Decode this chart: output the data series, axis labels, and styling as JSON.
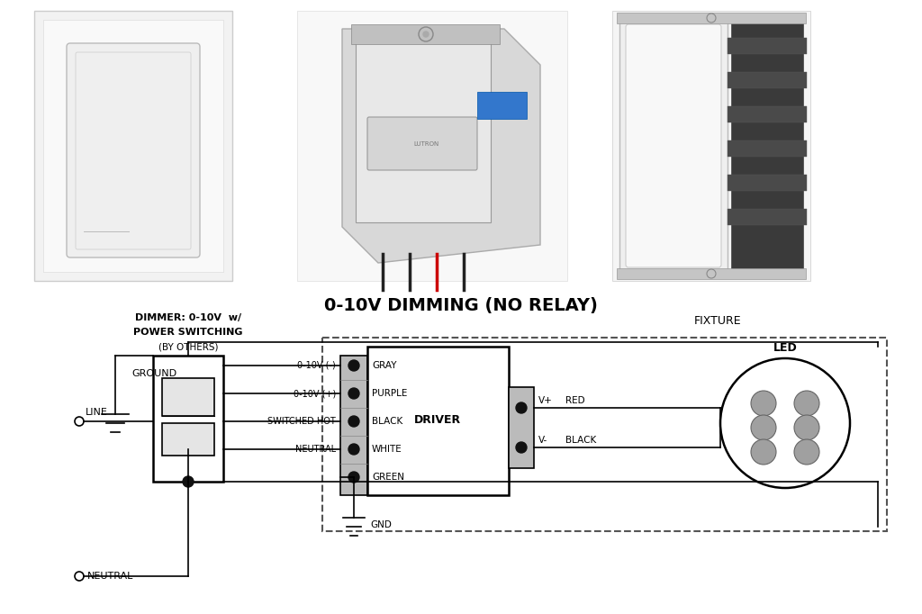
{
  "bg_color": "#ffffff",
  "title": "0-10V DIMMING (NO RELAY)",
  "dimmer_label_line1": "DIMMER: 0-10V  w/",
  "dimmer_label_line2": "POWER SWITCHING",
  "dimmer_label_line3": "(BY OTHERS)",
  "fixture_label": "FIXTURE",
  "driver_label": "DRIVER",
  "led_label": "LED",
  "line_label": "LINE",
  "ground_label": "GROUND",
  "neutral_label": "NEUTRAL",
  "wire_labels_left": [
    "0-10V (-)",
    "0-10V (+)",
    "SWITCHED HOT",
    "NEUTRAL"
  ],
  "wire_labels_right": [
    "GRAY",
    "PURPLE",
    "BLACK",
    "WHITE",
    "GREEN"
  ],
  "output_labels": [
    "V+",
    "V-"
  ],
  "output_wire_labels": [
    "RED",
    "BLACK"
  ],
  "gnd_label": "GND",
  "line_color": "#000000",
  "text_color": "#000000"
}
